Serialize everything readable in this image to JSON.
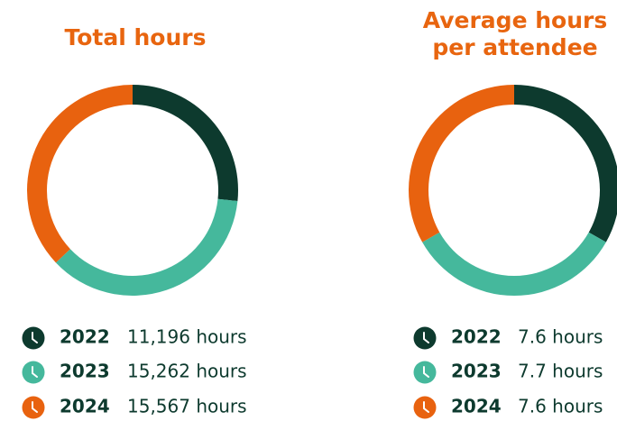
{
  "chart_data": [
    {
      "type": "pie",
      "title": "Total hours",
      "categories": [
        "2022",
        "2023",
        "2024"
      ],
      "values": [
        11196,
        15262,
        15567
      ],
      "value_labels": [
        "11,196 hours",
        "15,262 hours",
        "15,567 hours"
      ],
      "colors": [
        "#0d3a2e",
        "#45b89c",
        "#e8620f"
      ]
    },
    {
      "type": "pie",
      "title": "Average hours per attendee",
      "categories": [
        "2022",
        "2023",
        "2024"
      ],
      "values": [
        7.6,
        7.7,
        7.6
      ],
      "value_labels": [
        "7.6 hours",
        "7.7 hours",
        "7.6 hours"
      ],
      "colors": [
        "#0d3a2e",
        "#45b89c",
        "#e8620f"
      ]
    }
  ]
}
